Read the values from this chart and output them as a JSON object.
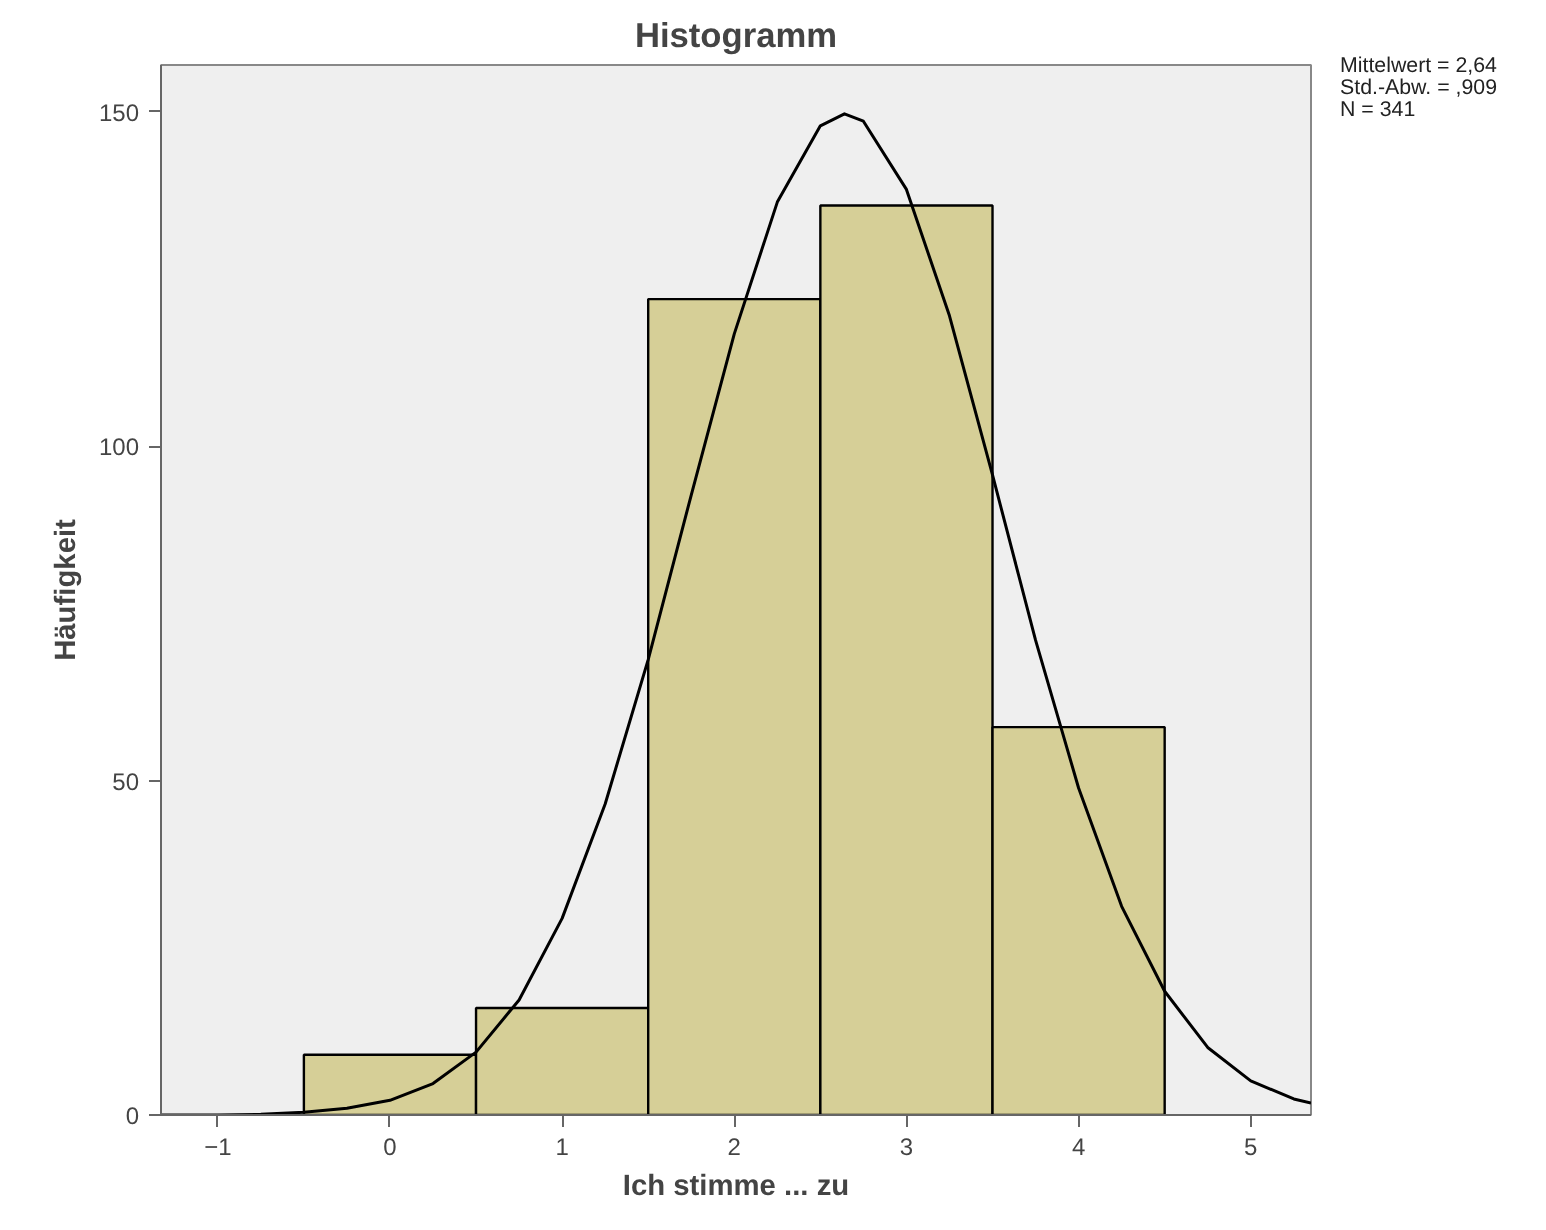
{
  "chart_data": {
    "type": "histogram",
    "title": "Histogramm",
    "xlabel": "Ich stimme ... zu",
    "ylabel": "Häufigkeit",
    "bins": [
      -0.5,
      0.5,
      1.5,
      2.5,
      3.5,
      4.5
    ],
    "values": [
      9,
      16,
      122,
      136,
      58
    ],
    "color": "#d6cf97",
    "series": [
      {
        "type": "line",
        "color": "#000000",
        "x": [
          -1.33,
          -1.0,
          -0.75,
          -0.5,
          -0.25,
          0,
          0.25,
          0.5,
          0.75,
          1.0,
          1.25,
          1.5,
          1.75,
          2.0,
          2.25,
          2.5,
          2.64,
          2.75,
          3.0,
          3.25,
          3.5,
          3.75,
          4.0,
          4.25,
          4.5,
          4.75,
          5.0,
          5.25,
          5.35
        ],
        "values": [
          0,
          0,
          0.1,
          0.4,
          1,
          2.2,
          4.7,
          9.4,
          17.2,
          29.4,
          46.5,
          68.1,
          92.7,
          116.8,
          136.5,
          147.9,
          149.7,
          148.6,
          138.4,
          119.5,
          95.7,
          71.0,
          48.9,
          31.2,
          18.5,
          10.1,
          5.1,
          2.4,
          1.8
        ]
      }
    ],
    "xlim": [
      -1.33,
      5.35
    ],
    "xticks": [
      -1,
      0,
      1,
      2,
      3,
      4,
      5
    ],
    "ylim": [
      0,
      157
    ],
    "yticks": [
      0,
      50,
      100,
      150
    ],
    "grid": false,
    "annotations": [
      "Mittelwert = 2,64",
      "Std.-Abw. = ,909",
      "N = 341"
    ]
  }
}
